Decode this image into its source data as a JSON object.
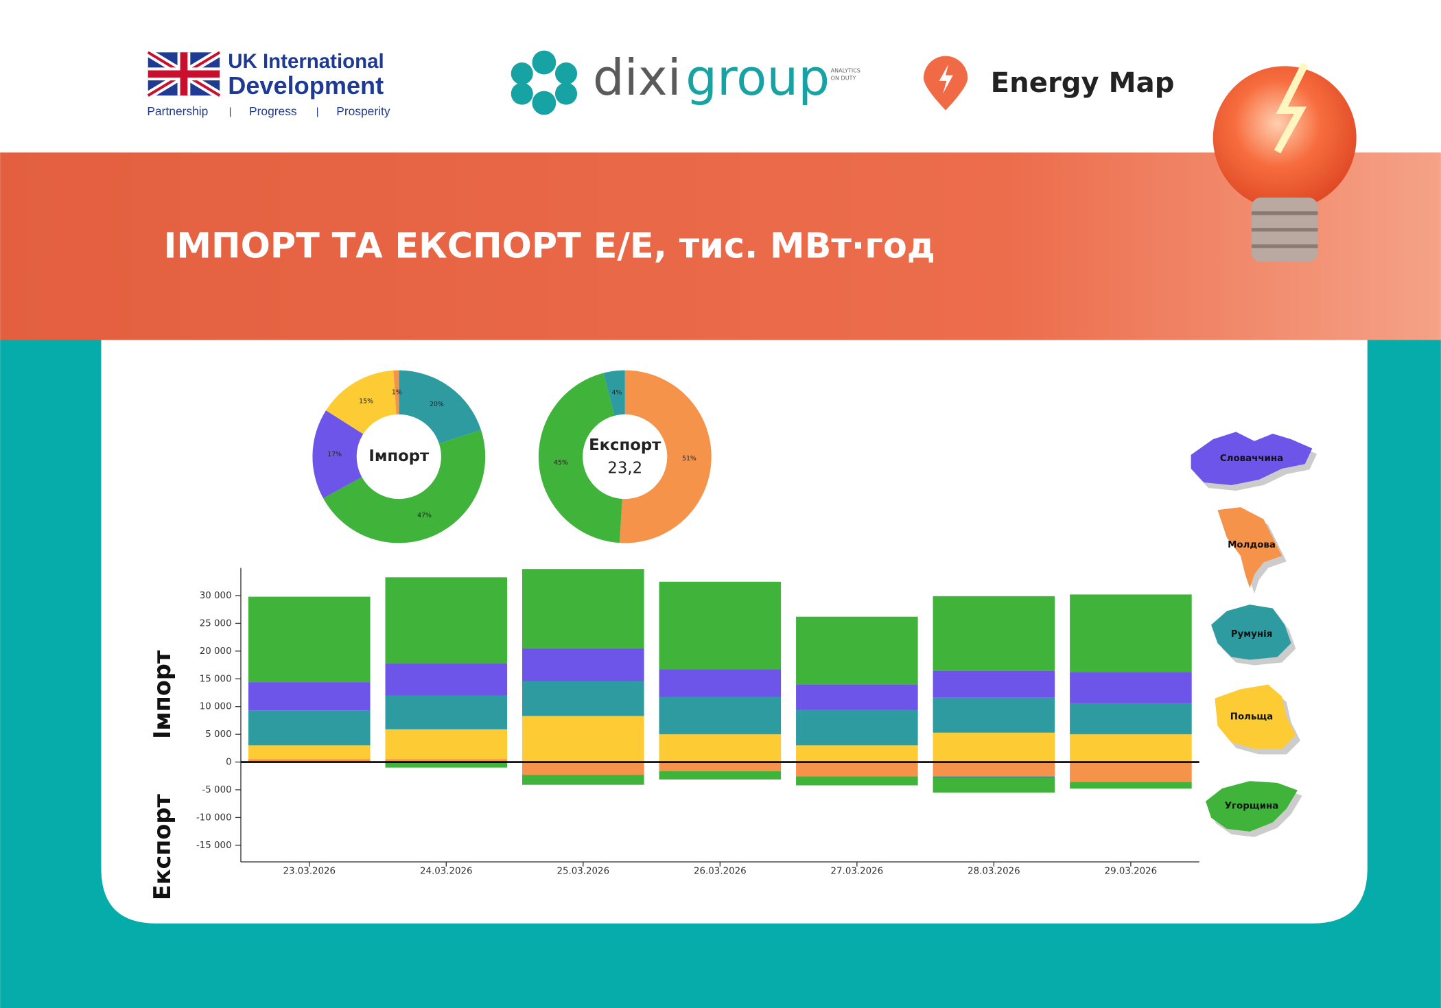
{
  "header": {
    "uk_line1": "UK International",
    "uk_line2": "Development",
    "uk_tagline": [
      "Partnership",
      "|",
      "Progress",
      "|",
      "Prosperity"
    ],
    "brand_prefix": "dixi",
    "brand_suffix": "group",
    "brand_tag1": "ANALYTICS",
    "brand_tag2": "ON DUTY",
    "energy_map": "Energy Map",
    "title": "ІМПОРТ ТА ЕКСПОРТ Е/Е, тис. МВт·год"
  },
  "chart_data": [
    {
      "type": "donut",
      "title": "Імпорт",
      "categories": [
        "Румунія",
        "Угорщина",
        "Словаччина",
        "Польща",
        "Молдова"
      ],
      "values": [
        20,
        47,
        17,
        15,
        1
      ],
      "value_labels": [
        "20%",
        "47%",
        "17%",
        "15%",
        "1%"
      ],
      "colors": [
        "#2e9ba1",
        "#3fb33a",
        "#6c55e8",
        "#fdcc34",
        "#f5934a"
      ]
    },
    {
      "type": "donut",
      "title": "Експорт",
      "subtitle": "23,2",
      "categories": [
        "Молдова",
        "Угорщина",
        "Румунія"
      ],
      "values": [
        51,
        45,
        4
      ],
      "value_labels": [
        "51%",
        "45%",
        "4%"
      ],
      "colors": [
        "#f5934a",
        "#3fb33a",
        "#2e9ba1"
      ]
    },
    {
      "type": "stacked-bar",
      "y_label_top": "Імпорт",
      "y_label_bottom": "Експорт",
      "categories": [
        "23.03.2026",
        "24.03.2026",
        "25.03.2026",
        "26.03.2026",
        "27.03.2026",
        "28.03.2026",
        "29.03.2026"
      ],
      "series": [
        {
          "name": "Молдова",
          "color": "#f5934a",
          "values": [
            500,
            500,
            0,
            0,
            0,
            0,
            0
          ],
          "export": [
            0,
            0,
            -2300,
            -1650,
            -2600,
            -2600,
            -3600
          ]
        },
        {
          "name": "Польща",
          "color": "#fdcc34",
          "values": [
            2500,
            5400,
            8300,
            5000,
            3000,
            5300,
            5000
          ],
          "export": [
            0,
            0,
            0,
            0,
            0,
            0,
            0
          ]
        },
        {
          "name": "Румунія",
          "color": "#2e9ba1",
          "values": [
            6300,
            6100,
            6300,
            6700,
            6400,
            6300,
            5600
          ],
          "export": [
            0,
            0,
            0,
            0,
            0,
            -300,
            0
          ]
        },
        {
          "name": "Словаччина",
          "color": "#6c55e8",
          "values": [
            5100,
            5800,
            5900,
            5000,
            4600,
            4800,
            5600
          ],
          "export": [
            0,
            0,
            0,
            0,
            0,
            0,
            0
          ]
        },
        {
          "name": "Угорщина",
          "color": "#3fb33a",
          "values": [
            15400,
            15500,
            14300,
            15800,
            12200,
            13500,
            14000
          ],
          "export": [
            0,
            -1000,
            -1800,
            -1500,
            -1600,
            -2600,
            -1200
          ]
        }
      ],
      "ylim": [
        -18000,
        35000
      ],
      "yticks": [
        {
          "value": -15000,
          "label": "-15 000"
        },
        {
          "value": -10000,
          "label": "-10 000"
        },
        {
          "value": -5000,
          "label": "-5 000"
        },
        0,
        {
          "value": 5000,
          "label": "5 000"
        },
        {
          "value": 10000,
          "label": "10 000"
        },
        {
          "value": 15000,
          "label": "15 000"
        },
        {
          "value": 20000,
          "label": "20 000"
        },
        {
          "value": 25000,
          "label": "25 000"
        },
        {
          "value": 30000,
          "label": "30 000"
        }
      ]
    }
  ]
}
